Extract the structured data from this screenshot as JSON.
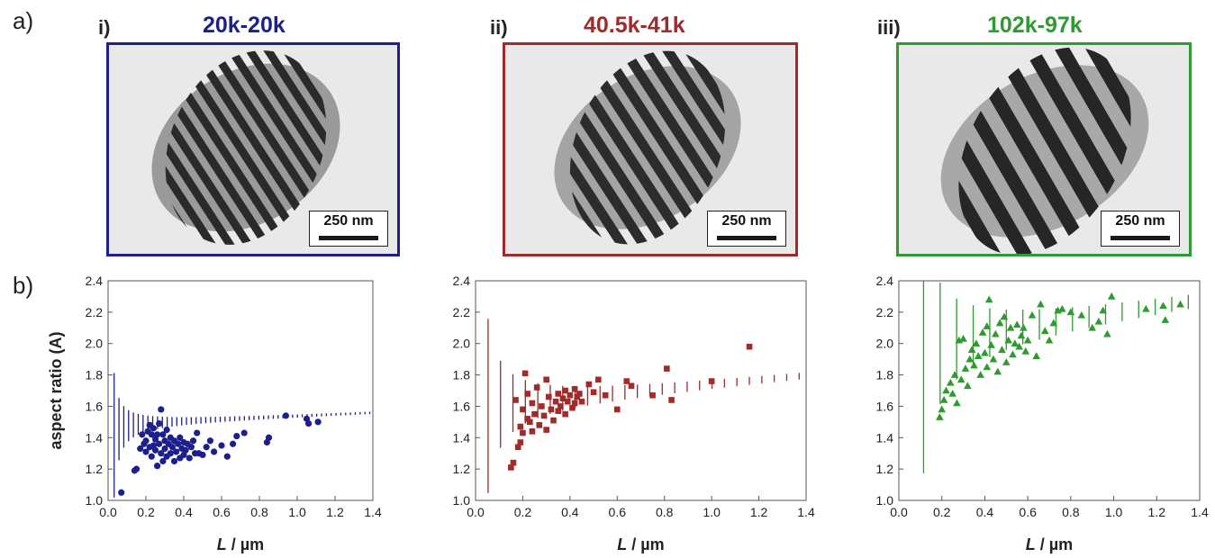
{
  "panel_labels": {
    "a": "a)",
    "b": "b)"
  },
  "samples": [
    {
      "roman": "i)",
      "title": "20k-20k",
      "color": "#1c1f8c",
      "scale_bar": "250 nm"
    },
    {
      "roman": "ii)",
      "title": "40.5k-41k",
      "color": "#a12a2a",
      "scale_bar": "250 nm"
    },
    {
      "roman": "iii)",
      "title": "102k-97k",
      "color": "#2f9a2f",
      "scale_bar": "250 nm"
    }
  ],
  "chart_data": [
    {
      "type": "scatter",
      "marker": "circle",
      "color": "#1c1f8c",
      "xlabel_italic": "L",
      "xlabel_unit": " / µm",
      "ylabel": "aspect ratio (A)",
      "xlim": [
        0,
        1.4
      ],
      "ylim": [
        1.0,
        2.4
      ],
      "xticks": [
        "0.0",
        "0.2",
        "0.4",
        "0.6",
        "0.8",
        "1.0",
        "1.2",
        "1.4"
      ],
      "yticks": [
        "1.0",
        "1.2",
        "1.4",
        "1.6",
        "1.8",
        "2.0",
        "2.2",
        "2.4"
      ],
      "points": [
        [
          0.07,
          1.05
        ],
        [
          0.14,
          1.19
        ],
        [
          0.15,
          1.2
        ],
        [
          0.17,
          1.33
        ],
        [
          0.18,
          1.42
        ],
        [
          0.19,
          1.36
        ],
        [
          0.2,
          1.38
        ],
        [
          0.2,
          1.31
        ],
        [
          0.21,
          1.44
        ],
        [
          0.22,
          1.34
        ],
        [
          0.22,
          1.48
        ],
        [
          0.23,
          1.42
        ],
        [
          0.23,
          1.28
        ],
        [
          0.24,
          1.35
        ],
        [
          0.24,
          1.46
        ],
        [
          0.25,
          1.39
        ],
        [
          0.25,
          1.32
        ],
        [
          0.26,
          1.42
        ],
        [
          0.26,
          1.22
        ],
        [
          0.27,
          1.49
        ],
        [
          0.27,
          1.36
        ],
        [
          0.28,
          1.58
        ],
        [
          0.28,
          1.3
        ],
        [
          0.29,
          1.42
        ],
        [
          0.29,
          1.25
        ],
        [
          0.3,
          1.38
        ],
        [
          0.3,
          1.33
        ],
        [
          0.31,
          1.45
        ],
        [
          0.31,
          1.28
        ],
        [
          0.32,
          1.36
        ],
        [
          0.33,
          1.4
        ],
        [
          0.33,
          1.3
        ],
        [
          0.34,
          1.34
        ],
        [
          0.35,
          1.25
        ],
        [
          0.35,
          1.38
        ],
        [
          0.36,
          1.31
        ],
        [
          0.37,
          1.36
        ],
        [
          0.38,
          1.27
        ],
        [
          0.38,
          1.4
        ],
        [
          0.39,
          1.33
        ],
        [
          0.4,
          1.29
        ],
        [
          0.4,
          1.37
        ],
        [
          0.41,
          1.32
        ],
        [
          0.42,
          1.36
        ],
        [
          0.43,
          1.27
        ],
        [
          0.44,
          1.34
        ],
        [
          0.45,
          1.38
        ],
        [
          0.46,
          1.3
        ],
        [
          0.47,
          1.43
        ],
        [
          0.48,
          1.3
        ],
        [
          0.5,
          1.29
        ],
        [
          0.52,
          1.34
        ],
        [
          0.54,
          1.38
        ],
        [
          0.56,
          1.31
        ],
        [
          0.6,
          1.35
        ],
        [
          0.63,
          1.28
        ],
        [
          0.66,
          1.36
        ],
        [
          0.68,
          1.41
        ],
        [
          0.72,
          1.43
        ],
        [
          0.84,
          1.37
        ],
        [
          0.85,
          1.4
        ],
        [
          0.94,
          1.54
        ],
        [
          1.05,
          1.52
        ],
        [
          1.06,
          1.49
        ],
        [
          1.11,
          1.5
        ]
      ],
      "theory": {
        "x0": 0.032,
        "dx": 0.0255,
        "max_lines": 56
      }
    },
    {
      "type": "scatter",
      "marker": "square",
      "color": "#a12a2a",
      "xlabel_italic": "L",
      "xlabel_unit": " / µm",
      "ylabel": "",
      "xlim": [
        0,
        1.4
      ],
      "ylim": [
        1.0,
        2.4
      ],
      "xticks": [
        "0.0",
        "0.2",
        "0.4",
        "0.6",
        "0.8",
        "1.0",
        "1.2",
        "1.4"
      ],
      "yticks": [
        "1.0",
        "1.2",
        "1.4",
        "1.6",
        "1.8",
        "2.0",
        "2.2",
        "2.4"
      ],
      "points": [
        [
          0.15,
          1.21
        ],
        [
          0.16,
          1.24
        ],
        [
          0.17,
          1.64
        ],
        [
          0.18,
          1.34
        ],
        [
          0.19,
          1.47
        ],
        [
          0.19,
          1.37
        ],
        [
          0.2,
          1.58
        ],
        [
          0.2,
          1.43
        ],
        [
          0.21,
          1.81
        ],
        [
          0.22,
          1.52
        ],
        [
          0.22,
          1.68
        ],
        [
          0.23,
          1.5
        ],
        [
          0.24,
          1.62
        ],
        [
          0.24,
          1.44
        ],
        [
          0.25,
          1.55
        ],
        [
          0.26,
          1.72
        ],
        [
          0.27,
          1.48
        ],
        [
          0.28,
          1.6
        ],
        [
          0.29,
          1.54
        ],
        [
          0.3,
          1.77
        ],
        [
          0.3,
          1.45
        ],
        [
          0.31,
          1.66
        ],
        [
          0.32,
          1.58
        ],
        [
          0.33,
          1.51
        ],
        [
          0.34,
          1.63
        ],
        [
          0.35,
          1.57
        ],
        [
          0.35,
          1.68
        ],
        [
          0.36,
          1.6
        ],
        [
          0.37,
          1.65
        ],
        [
          0.38,
          1.55
        ],
        [
          0.38,
          1.7
        ],
        [
          0.39,
          1.63
        ],
        [
          0.4,
          1.67
        ],
        [
          0.41,
          1.59
        ],
        [
          0.42,
          1.62
        ],
        [
          0.42,
          1.71
        ],
        [
          0.43,
          1.66
        ],
        [
          0.44,
          1.68
        ],
        [
          0.45,
          1.63
        ],
        [
          0.48,
          1.74
        ],
        [
          0.5,
          1.69
        ],
        [
          0.52,
          1.77
        ],
        [
          0.55,
          1.67
        ],
        [
          0.6,
          1.58
        ],
        [
          0.64,
          1.76
        ],
        [
          0.66,
          1.73
        ],
        [
          0.75,
          1.67
        ],
        [
          0.81,
          1.84
        ],
        [
          0.83,
          1.64
        ],
        [
          1.0,
          1.76
        ],
        [
          1.16,
          1.98
        ]
      ],
      "theory": {
        "x0": 0.053,
        "dx": 0.0527,
        "max_lines": 27
      }
    },
    {
      "type": "scatter",
      "marker": "triangle",
      "color": "#2f9a2f",
      "xlabel_italic": "L",
      "xlabel_unit": " / µm",
      "ylabel": "",
      "xlim": [
        0,
        1.4
      ],
      "ylim": [
        1.0,
        2.4
      ],
      "xticks": [
        "0.0",
        "0.2",
        "0.4",
        "0.6",
        "0.8",
        "1.0",
        "1.2",
        "1.4"
      ],
      "yticks": [
        "1.0",
        "1.2",
        "1.4",
        "1.6",
        "1.8",
        "2.0",
        "2.2",
        "2.4"
      ],
      "points": [
        [
          0.19,
          1.53
        ],
        [
          0.2,
          1.58
        ],
        [
          0.21,
          1.64
        ],
        [
          0.22,
          1.7
        ],
        [
          0.24,
          1.75
        ],
        [
          0.25,
          1.68
        ],
        [
          0.26,
          1.8
        ],
        [
          0.27,
          1.62
        ],
        [
          0.28,
          2.02
        ],
        [
          0.29,
          1.77
        ],
        [
          0.3,
          2.03
        ],
        [
          0.31,
          1.84
        ],
        [
          0.32,
          1.73
        ],
        [
          0.33,
          1.9
        ],
        [
          0.34,
          1.96
        ],
        [
          0.35,
          1.86
        ],
        [
          0.36,
          2.0
        ],
        [
          0.37,
          1.92
        ],
        [
          0.38,
          1.8
        ],
        [
          0.39,
          2.07
        ],
        [
          0.4,
          1.94
        ],
        [
          0.41,
          2.11
        ],
        [
          0.41,
          1.85
        ],
        [
          0.42,
          2.28
        ],
        [
          0.43,
          1.99
        ],
        [
          0.44,
          1.9
        ],
        [
          0.45,
          2.06
        ],
        [
          0.46,
          1.82
        ],
        [
          0.47,
          2.13
        ],
        [
          0.48,
          1.96
        ],
        [
          0.49,
          2.17
        ],
        [
          0.5,
          1.88
        ],
        [
          0.51,
          2.02
        ],
        [
          0.52,
          2.1
        ],
        [
          0.53,
          1.93
        ],
        [
          0.54,
          2.0
        ],
        [
          0.55,
          2.12
        ],
        [
          0.56,
          1.98
        ],
        [
          0.57,
          2.05
        ],
        [
          0.58,
          2.1
        ],
        [
          0.59,
          1.95
        ],
        [
          0.6,
          2.02
        ],
        [
          0.62,
          2.18
        ],
        [
          0.64,
          1.92
        ],
        [
          0.66,
          2.25
        ],
        [
          0.68,
          2.08
        ],
        [
          0.7,
          2.02
        ],
        [
          0.72,
          2.13
        ],
        [
          0.74,
          2.21
        ],
        [
          0.76,
          2.22
        ],
        [
          0.8,
          2.2
        ],
        [
          0.85,
          2.18
        ],
        [
          0.9,
          2.1
        ],
        [
          0.93,
          2.14
        ],
        [
          0.95,
          2.21
        ],
        [
          0.97,
          2.06
        ],
        [
          0.99,
          2.3
        ],
        [
          1.15,
          2.22
        ],
        [
          1.23,
          2.24
        ],
        [
          1.24,
          2.15
        ],
        [
          1.31,
          2.25
        ]
      ],
      "theory": {
        "x0": 0.115,
        "dx": 0.077,
        "max_lines": 17
      }
    }
  ]
}
